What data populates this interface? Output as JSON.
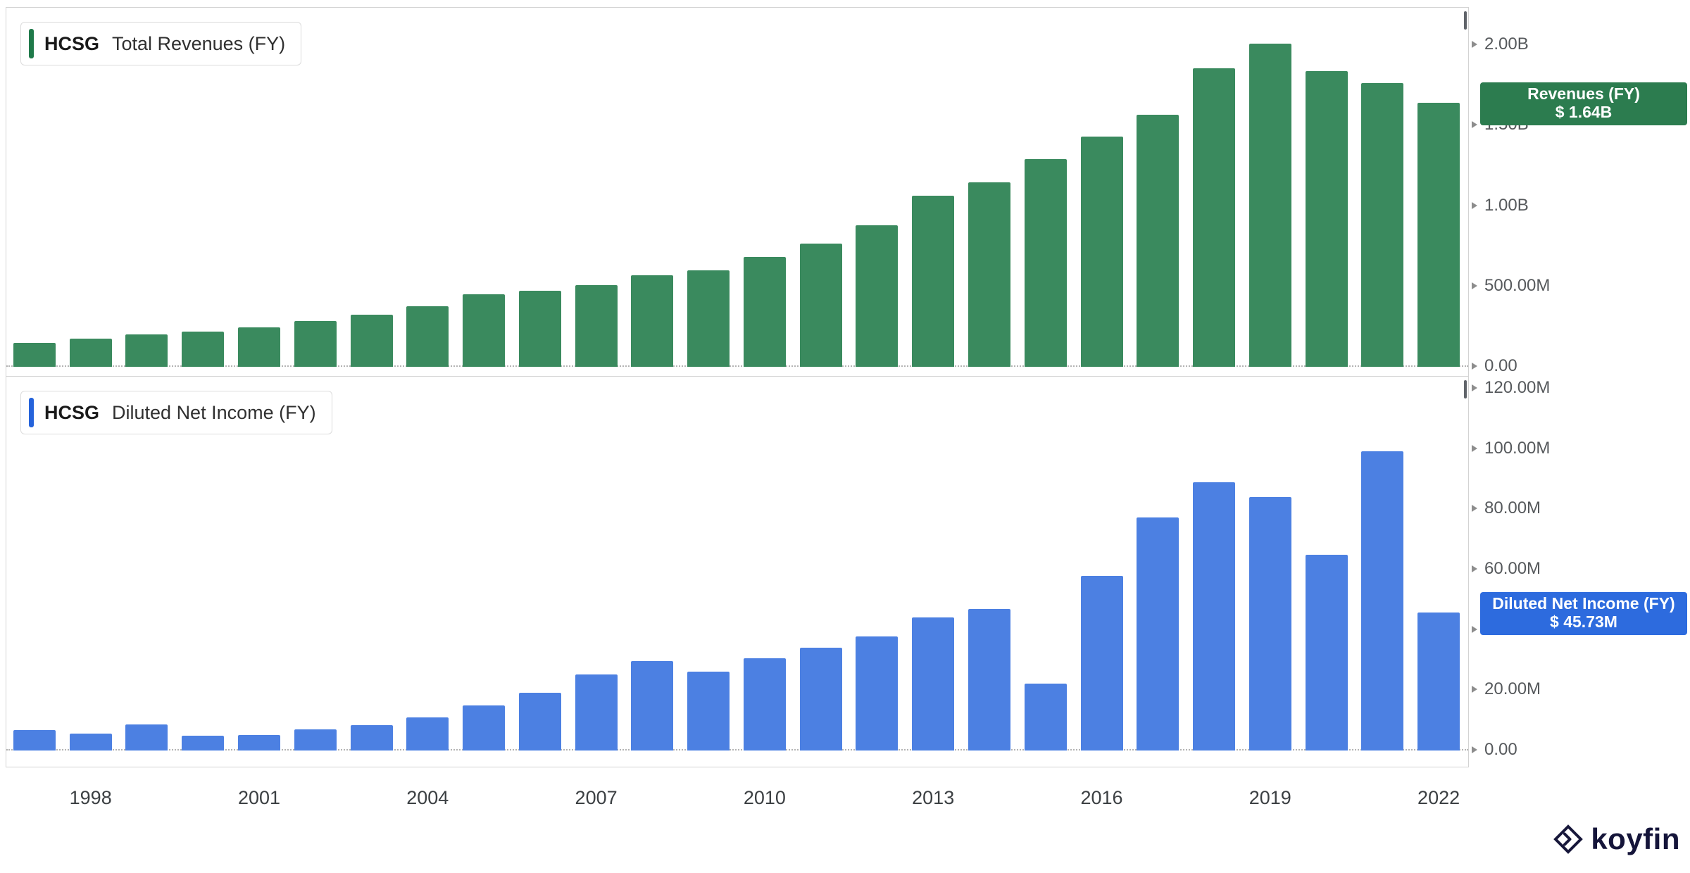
{
  "chart_data": [
    {
      "type": "bar",
      "title": "HCSG Total Revenues (FY)",
      "legend": {
        "ticker": "HCSG",
        "label": "Total Revenues (FY)"
      },
      "unit": "millions_usd",
      "categories": [
        1997,
        1998,
        1999,
        2000,
        2001,
        2002,
        2003,
        2004,
        2005,
        2006,
        2007,
        2008,
        2009,
        2010,
        2011,
        2012,
        2013,
        2014,
        2015,
        2016,
        2017,
        2018,
        2019,
        2020,
        2021,
        2022
      ],
      "values": [
        150,
        175,
        200,
        220,
        245,
        285,
        325,
        375,
        450,
        475,
        510,
        570,
        600,
        685,
        765,
        880,
        1065,
        1145,
        1290,
        1430,
        1565,
        1855,
        2010,
        1840,
        1765,
        1640
      ],
      "ylim": [
        0,
        2230
      ],
      "y_ticks": [
        {
          "label": "2.00B",
          "value": 2000
        },
        {
          "label": "1.50B",
          "value": 1500
        },
        {
          "label": "1.00B",
          "value": 1000
        },
        {
          "label": "500.00M",
          "value": 500
        },
        {
          "label": "0.00",
          "value": 0
        }
      ],
      "bar_color": "#3A8A5E",
      "legend_accent": "#1F7A4A",
      "badge": {
        "title": "Revenues (FY)",
        "value": "$ 1.64B",
        "color": "#2C7C4F"
      },
      "legend_position": "top-left",
      "grid": "zero-line-only"
    },
    {
      "type": "bar",
      "title": "HCSG Diluted Net Income (FY)",
      "legend": {
        "ticker": "HCSG",
        "label": "Diluted Net Income (FY)"
      },
      "unit": "millions_usd",
      "categories": [
        1997,
        1998,
        1999,
        2000,
        2001,
        2002,
        2003,
        2004,
        2005,
        2006,
        2007,
        2008,
        2009,
        2010,
        2011,
        2012,
        2013,
        2014,
        2015,
        2016,
        2017,
        2018,
        2019,
        2020,
        2021,
        2022
      ],
      "values": [
        6.8,
        5.7,
        8.6,
        5.0,
        5.2,
        6.9,
        8.3,
        11.0,
        15.0,
        19.2,
        25.1,
        29.7,
        26.2,
        30.7,
        34.0,
        37.8,
        44.2,
        46.9,
        22.2,
        57.9,
        77.3,
        89.0,
        84.0,
        65.0,
        99.1,
        45.73
      ],
      "ylim": [
        0,
        124
      ],
      "y_ticks": [
        {
          "label": "120.00M",
          "value": 120
        },
        {
          "label": "100.00M",
          "value": 100
        },
        {
          "label": "80.00M",
          "value": 80
        },
        {
          "label": "60.00M",
          "value": 60
        },
        {
          "label": "40.00M",
          "value": 40
        },
        {
          "label": "20.00M",
          "value": 20
        },
        {
          "label": "0.00",
          "value": 0
        }
      ],
      "bar_color": "#4C80E2",
      "legend_accent": "#2563DB",
      "badge": {
        "title": "Diluted Net Income (FY)",
        "value": "$ 45.73M",
        "color": "#2D6BDE"
      },
      "legend_position": "top-left",
      "grid": "zero-line-only"
    }
  ],
  "x_axis": {
    "first_year": 1997,
    "labels": [
      {
        "label": "1998",
        "year": 1998
      },
      {
        "label": "2001",
        "year": 2001
      },
      {
        "label": "2004",
        "year": 2004
      },
      {
        "label": "2007",
        "year": 2007
      },
      {
        "label": "2010",
        "year": 2010
      },
      {
        "label": "2013",
        "year": 2013
      },
      {
        "label": "2016",
        "year": 2016
      },
      {
        "label": "2019",
        "year": 2019
      },
      {
        "label": "2022",
        "year": 2022
      }
    ]
  },
  "branding": {
    "logo_text": "koyfin"
  }
}
